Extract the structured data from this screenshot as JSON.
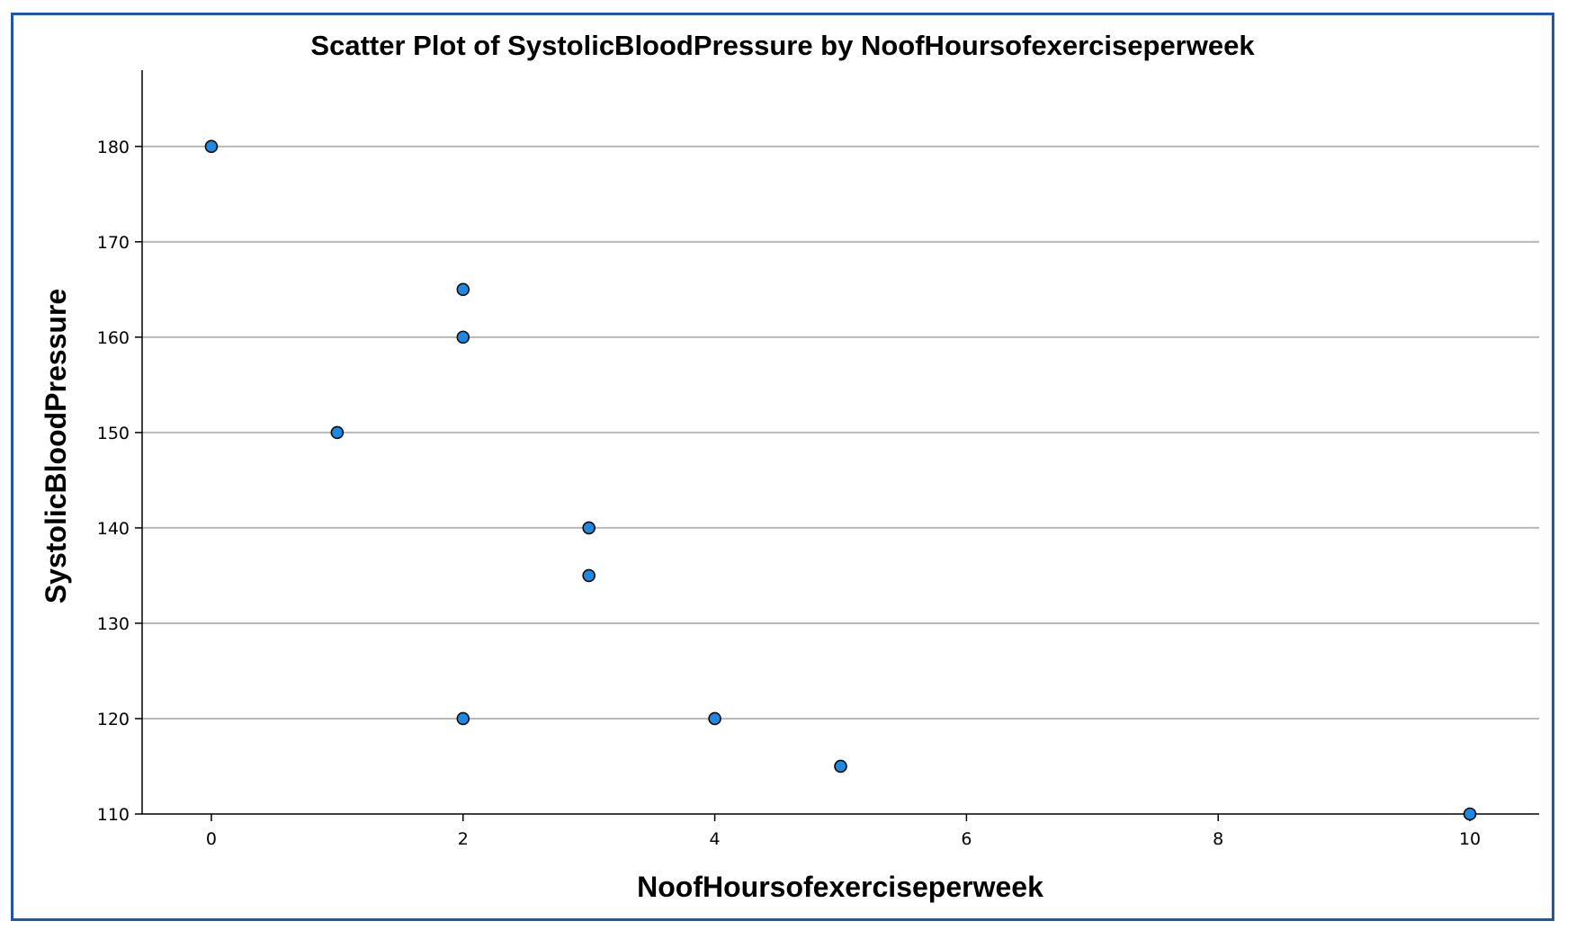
{
  "chart_data": {
    "type": "scatter",
    "title": "Scatter Plot of SystolicBloodPressure by NoofHoursofexerciseperweek",
    "xlabel": "NoofHoursofexerciseperweek",
    "ylabel": "SystolicBloodPressure",
    "xlim": [
      -0.55,
      10.55
    ],
    "ylim": [
      110,
      188
    ],
    "xticks": [
      0,
      2,
      4,
      6,
      8,
      10
    ],
    "yticks": [
      110,
      120,
      130,
      140,
      150,
      160,
      170,
      180
    ],
    "grid": "horizontal",
    "legend": "none",
    "point_color": "#1e88e5",
    "point_edge_color": "#0a0a0a",
    "points": [
      {
        "x": 0,
        "y": 180
      },
      {
        "x": 2,
        "y": 165
      },
      {
        "x": 2,
        "y": 160
      },
      {
        "x": 1,
        "y": 150
      },
      {
        "x": 3,
        "y": 140
      },
      {
        "x": 3,
        "y": 135
      },
      {
        "x": 2,
        "y": 120
      },
      {
        "x": 4,
        "y": 120
      },
      {
        "x": 5,
        "y": 115
      },
      {
        "x": 10,
        "y": 110
      }
    ]
  }
}
